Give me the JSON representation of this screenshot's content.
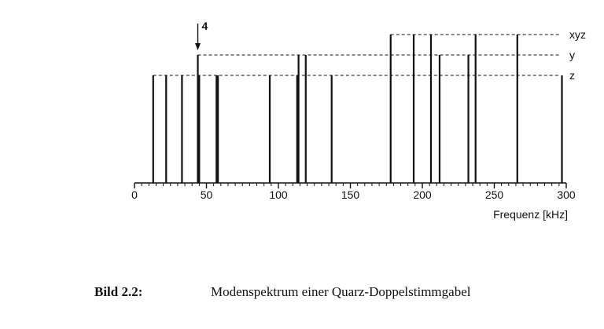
{
  "chart_data": {
    "type": "bar",
    "xlabel": "Frequenz  [kHz]",
    "xlim": [
      0,
      300
    ],
    "xticks": [
      0,
      50,
      100,
      150,
      200,
      250,
      300
    ],
    "levels": {
      "z": 1,
      "y": 2,
      "xyz": 3
    },
    "annotation": "4",
    "annotation_x": 44,
    "marks": [
      {
        "x": 13,
        "level": "z"
      },
      {
        "x": 22,
        "level": "z"
      },
      {
        "x": 33,
        "level": "z"
      },
      {
        "x": 44,
        "level": "y"
      },
      {
        "x": 45,
        "level": "z"
      },
      {
        "x": 57,
        "level": "z"
      },
      {
        "x": 58,
        "level": "z"
      },
      {
        "x": 94,
        "level": "z"
      },
      {
        "x": 113,
        "level": "z"
      },
      {
        "x": 114,
        "level": "y"
      },
      {
        "x": 119,
        "level": "y"
      },
      {
        "x": 137,
        "level": "z"
      },
      {
        "x": 178,
        "level": "xyz"
      },
      {
        "x": 194,
        "level": "xyz"
      },
      {
        "x": 206,
        "level": "xyz"
      },
      {
        "x": 212,
        "level": "y"
      },
      {
        "x": 232,
        "level": "y"
      },
      {
        "x": 237,
        "level": "xyz"
      },
      {
        "x": 266,
        "level": "xyz"
      },
      {
        "x": 297,
        "level": "z"
      }
    ]
  },
  "caption": {
    "label": "Bild 2.2:",
    "text": "Modenspektrum einer Quarz-Doppelstimmgabel"
  }
}
